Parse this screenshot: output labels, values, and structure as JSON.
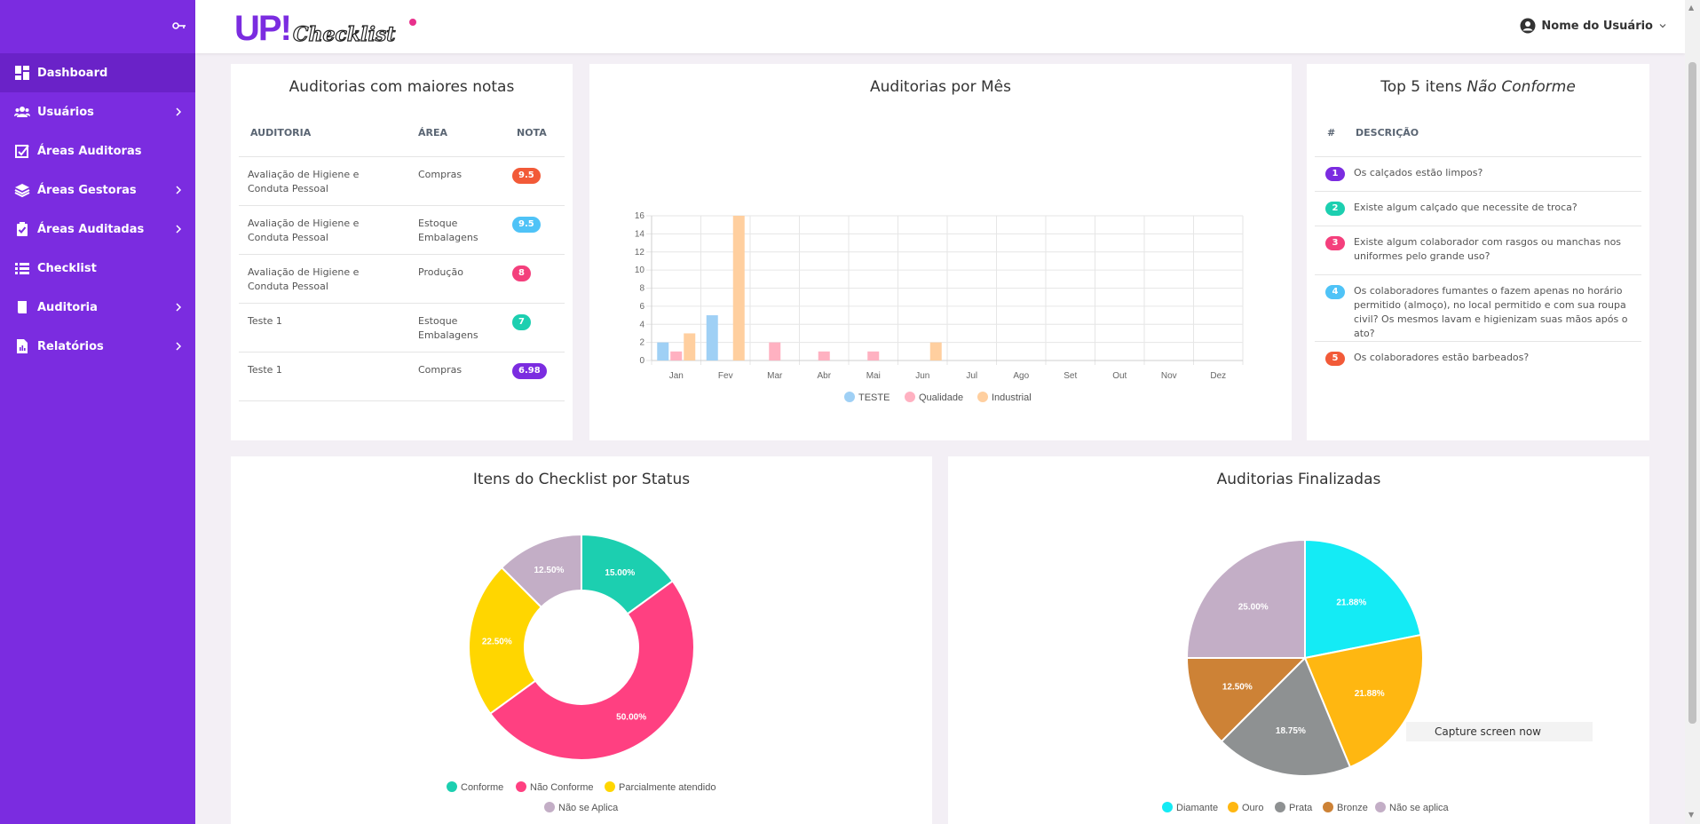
{
  "sidebar": {
    "items": [
      {
        "label": "Dashboard",
        "icon": "dashboard-icon",
        "active": true
      },
      {
        "label": "Usuários",
        "icon": "users-icon",
        "chevron": true
      },
      {
        "label": "Áreas Auditoras",
        "icon": "checkbox-chart-icon"
      },
      {
        "label": "Áreas Gestoras",
        "icon": "layers-icon",
        "chevron": true
      },
      {
        "label": "Áreas Auditadas",
        "icon": "clipboard-check-icon",
        "chevron": true
      },
      {
        "label": "Checklist",
        "icon": "list-icon"
      },
      {
        "label": "Auditoria",
        "icon": "book-icon",
        "chevron": true
      },
      {
        "label": "Relatórios",
        "icon": "report-icon",
        "chevron": true
      }
    ],
    "accent": "#7b2ce0"
  },
  "header": {
    "logo_main": "UP!",
    "logo_sub": "Checklist",
    "user_name": "Nome do Usuário"
  },
  "top_audits": {
    "title": "Auditorias com maiores notas",
    "columns": [
      "AUDITORIA",
      "ÁREA",
      "NOTA"
    ],
    "rows": [
      {
        "audit": "Avaliação de Higiene e Conduta Pessoal",
        "area": "Compras",
        "grade": "9.5",
        "color": "#f25a38"
      },
      {
        "audit": "Avaliação de Higiene e Conduta Pessoal",
        "area": "Estoque Embalagens",
        "grade": "9.5",
        "color": "#4fc3f7"
      },
      {
        "audit": "Avaliação de Higiene e Conduta Pessoal",
        "area": "Produção",
        "grade": "8",
        "color": "#f43f7c"
      },
      {
        "audit": "Teste 1",
        "area": "Estoque Embalagens",
        "grade": "7",
        "color": "#1ccfb0"
      },
      {
        "audit": "Teste 1",
        "area": "Compras",
        "grade": "6.98",
        "color": "#7b2ce0"
      }
    ]
  },
  "top_nonconform": {
    "title_prefix": "Top 5 itens",
    "title_italic": "Não Conforme",
    "columns": [
      "#",
      "DESCRIÇÃO"
    ],
    "rows": [
      {
        "n": "1",
        "text": "Os calçados estão limpos?",
        "color": "#7b2ce0"
      },
      {
        "n": "2",
        "text": "Existe algum calçado que necessite de troca?",
        "color": "#1ccfb0"
      },
      {
        "n": "3",
        "text": "Existe algum colaborador com rasgos ou manchas nos uniformes pelo grande uso?",
        "color": "#f43f7c"
      },
      {
        "n": "4",
        "text": "Os colaboradores fumantes o fazem apenas no horário permitido (almoço), no local permitido e com sua roupa civil? Os mesmos lavam e higienizam suas mãos após o ato?",
        "color": "#4fc3f7"
      },
      {
        "n": "5",
        "text": "Os colaboradores estão barbeados?",
        "color": "#f25a38"
      }
    ]
  },
  "monthly": {
    "title": "Auditorias por Mês"
  },
  "status": {
    "title": "Itens do Checklist por Status"
  },
  "finished": {
    "title": "Auditorias Finalizadas"
  },
  "tooltip": "Capture screen now",
  "chart_data": [
    {
      "type": "bar",
      "title": "Auditorias por Mês",
      "categories": [
        "Jan",
        "Fev",
        "Mar",
        "Abr",
        "Mai",
        "Jun",
        "Jul",
        "Ago",
        "Set",
        "Out",
        "Nov",
        "Dez"
      ],
      "series": [
        {
          "name": "TESTE",
          "color": "#9fd0f5",
          "values": [
            2,
            5,
            0,
            0,
            0,
            0,
            0,
            0,
            0,
            0,
            0,
            0
          ]
        },
        {
          "name": "Qualidade",
          "color": "#ffb1c1",
          "values": [
            1,
            0,
            2,
            1,
            1,
            0,
            0,
            0,
            0,
            0,
            0,
            0
          ]
        },
        {
          "name": "Industrial",
          "color": "#ffcf9f",
          "values": [
            3,
            16,
            0,
            0,
            0,
            2,
            0,
            0,
            0,
            0,
            0,
            0
          ]
        }
      ],
      "ylim": [
        0,
        16
      ],
      "yticks": [
        "0",
        "2",
        "4",
        "6",
        "8",
        "10",
        "12",
        "14",
        "16"
      ],
      "legend": "bottom"
    },
    {
      "type": "pie",
      "title": "Itens do Checklist por Status",
      "donut": true,
      "labels": [
        "Conforme",
        "Não Conforme",
        "Parcialmente atendido",
        "Não se Aplica"
      ],
      "values": [
        15.0,
        50.0,
        22.5,
        12.5
      ],
      "value_labels": [
        "15.00%",
        "50.00%",
        "22.50%",
        "12.50%"
      ],
      "colors": [
        "#1ccfb0",
        "#ff4081",
        "#ffd600",
        "#c3aec6"
      ],
      "legend": "bottom"
    },
    {
      "type": "pie",
      "title": "Auditorias Finalizadas",
      "donut": false,
      "labels": [
        "Diamante",
        "Ouro",
        "Prata",
        "Bronze",
        "Não se aplica"
      ],
      "values": [
        21.88,
        21.88,
        18.75,
        12.5,
        25.0
      ],
      "value_labels": [
        "21.88%",
        "21.88%",
        "18.75%",
        "12.50%",
        "25.00%"
      ],
      "colors": [
        "#14ebf5",
        "#ffb711",
        "#8e9192",
        "#cd8236",
        "#c3aec6"
      ],
      "legend": "bottom"
    }
  ]
}
